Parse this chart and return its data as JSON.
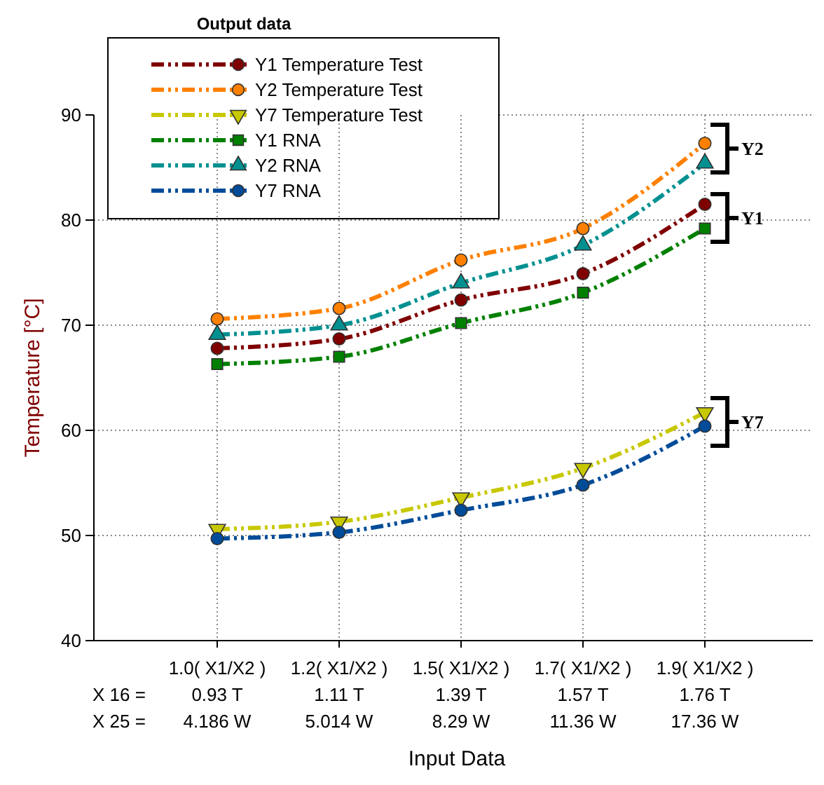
{
  "chart_data": {
    "type": "line",
    "legend_title": "Output data",
    "xlabel": "Input Data",
    "ylabel": "Temperature [°C]",
    "categories": [
      "1.0( X1/X2 )\n0.93 T\n4.186 W",
      "1.2( X1/X2 )\n1.11 T\n5.014 W",
      "1.5( X1/X2 )\n1.39 T\n8.29 W",
      "1.7( X1/X2 )\n1.57 T\n11.36 W",
      "1.9( X1/X2 )\n1.76 T\n17.36 W"
    ],
    "series": [
      {
        "name": "Y1 Temperature Test",
        "color": "#800000",
        "marker": "circle",
        "values": [
          67.8,
          68.7,
          72.4,
          74.9,
          81.5
        ]
      },
      {
        "name": "Y2 Temperature Test",
        "color": "#ff8000",
        "marker": "circle",
        "values": [
          70.6,
          71.6,
          76.2,
          79.2,
          87.3
        ]
      },
      {
        "name": "Y7 Temperature Test",
        "color": "#c8c800",
        "marker": "triangle",
        "values": [
          50.6,
          51.3,
          53.6,
          56.4,
          61.7
        ]
      },
      {
        "name": "Y1 RNA",
        "color": "#008000",
        "marker": "square",
        "values": [
          66.3,
          67.0,
          70.2,
          73.1,
          79.2
        ]
      },
      {
        "name": "Y2 RNA",
        "color": "#009090",
        "marker": "triangle",
        "values": [
          69.1,
          70.0,
          74.0,
          77.6,
          85.4
        ]
      },
      {
        "name": "Y7 RNA",
        "color": "#004c99",
        "marker": "circle",
        "values": [
          49.7,
          50.3,
          52.4,
          54.8,
          60.4
        ]
      }
    ],
    "ylim": [
      40,
      90
    ],
    "yticks": [
      40,
      50,
      60,
      70,
      80,
      90
    ],
    "grid": true,
    "legend": "top left",
    "line_style": "dashed",
    "annotations": [
      "X 16 =",
      "X 25 =",
      {
        "text": "Y2",
        "x": "1.9( X1/X2 )\n1.76 T\n17.36 W",
        "y": 86.8
      },
      {
        "text": "Y1",
        "x": "1.9( X1/X2 )\n1.76 T\n17.36 W",
        "y": 80.2
      },
      {
        "text": "Y7",
        "x": "1.9( X1/X2 )\n1.76 T\n17.36 W",
        "y": 60.8
      }
    ]
  }
}
